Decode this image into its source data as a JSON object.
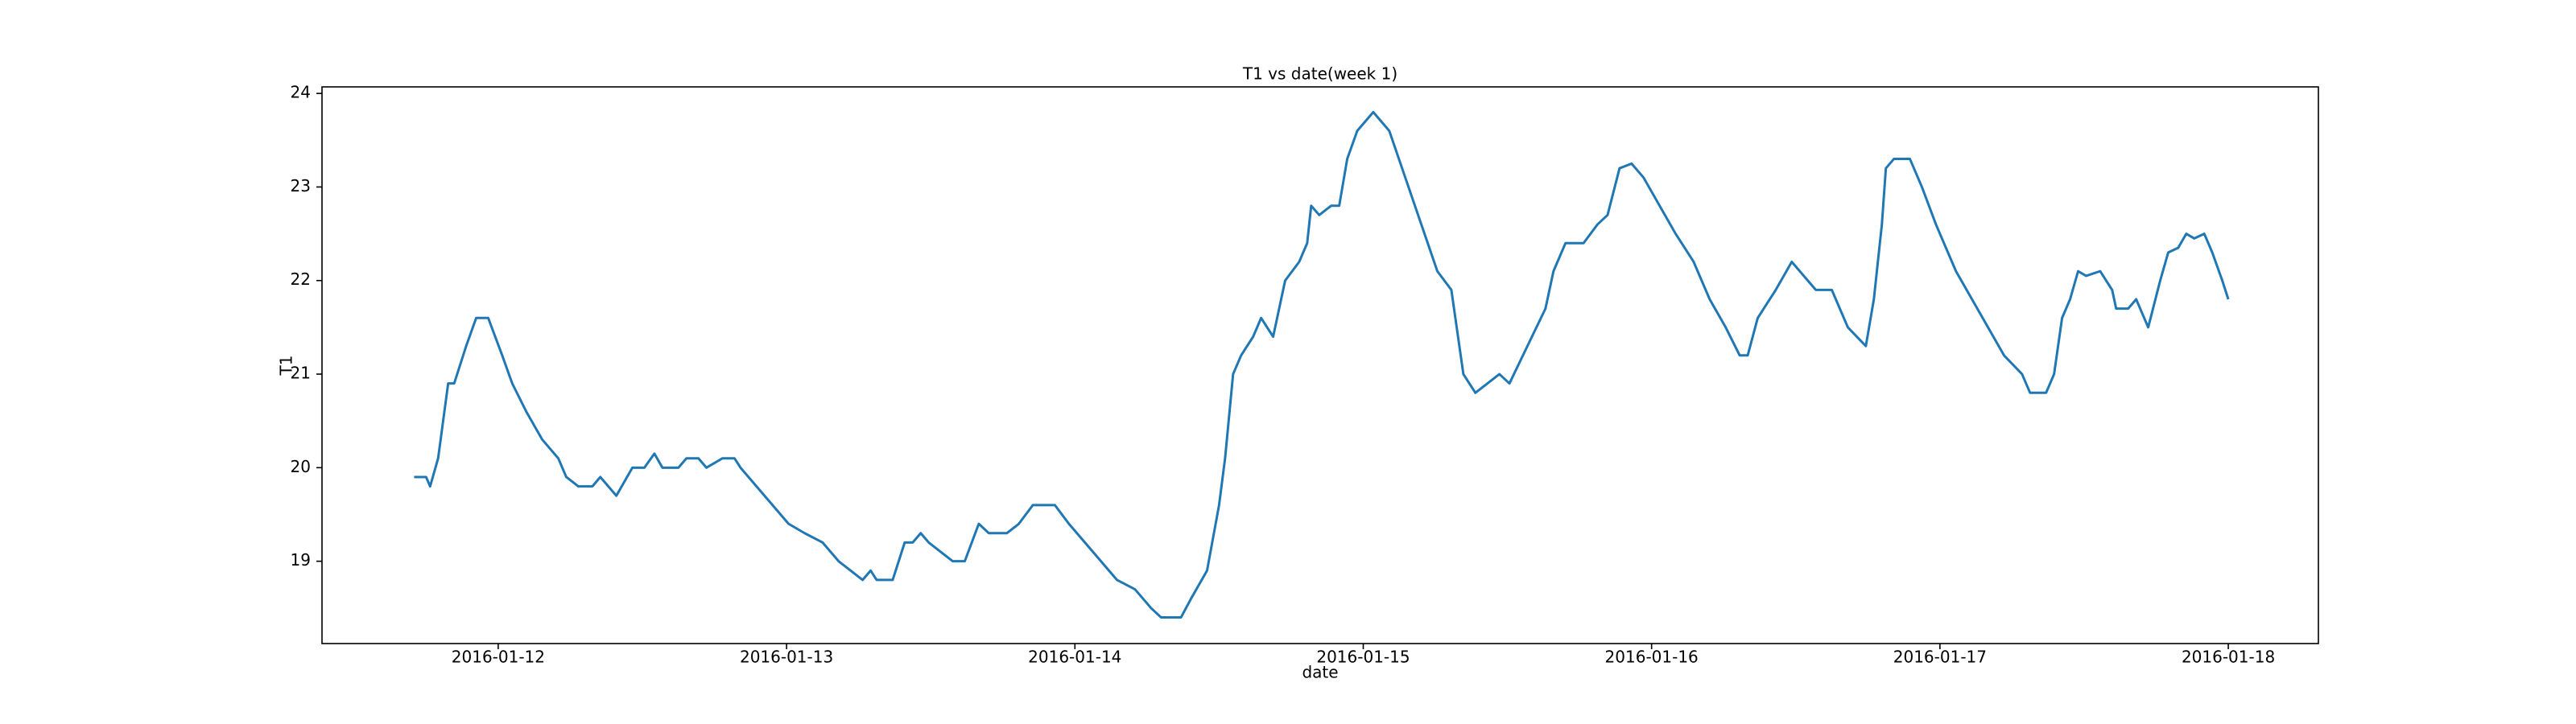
{
  "chart_data": {
    "type": "line",
    "title": "T1 vs date(week 1)",
    "x_label": "date",
    "y_label": "T1",
    "color": "#1f77b4",
    "x": [
      "2016-01-11 17:00",
      "2016-01-11 18:00",
      "2016-01-11 18:20",
      "2016-01-11 19:00",
      "2016-01-11 19:50",
      "2016-01-11 20:20",
      "2016-01-11 21:20",
      "2016-01-11 22:10",
      "2016-01-11 23:10",
      "2016-01-12 00:20",
      "2016-01-12 01:10",
      "2016-01-12 02:20",
      "2016-01-12 03:40",
      "2016-01-12 05:00",
      "2016-01-12 05:40",
      "2016-01-12 06:40",
      "2016-01-12 07:50",
      "2016-01-12 08:30",
      "2016-01-12 09:10",
      "2016-01-12 09:50",
      "2016-01-12 11:10",
      "2016-01-12 12:10",
      "2016-01-12 13:00",
      "2016-01-12 13:40",
      "2016-01-12 15:00",
      "2016-01-12 15:40",
      "2016-01-12 16:40",
      "2016-01-12 17:20",
      "2016-01-12 18:40",
      "2016-01-12 19:40",
      "2016-01-12 20:10",
      "2016-01-12 21:30",
      "2016-01-12 22:50",
      "2016-01-13 00:10",
      "2016-01-13 01:30",
      "2016-01-13 03:00",
      "2016-01-13 04:20",
      "2016-01-13 05:20",
      "2016-01-13 06:20",
      "2016-01-13 07:00",
      "2016-01-13 07:30",
      "2016-01-13 08:50",
      "2016-01-13 09:50",
      "2016-01-13 10:30",
      "2016-01-13 11:10",
      "2016-01-13 11:50",
      "2016-01-13 12:50",
      "2016-01-13 13:50",
      "2016-01-13 14:50",
      "2016-01-13 16:00",
      "2016-01-13 16:50",
      "2016-01-13 18:20",
      "2016-01-13 19:20",
      "2016-01-13 20:30",
      "2016-01-13 22:20",
      "2016-01-13 23:30",
      "2016-01-14 00:50",
      "2016-01-14 02:10",
      "2016-01-14 03:30",
      "2016-01-14 05:00",
      "2016-01-14 06:20",
      "2016-01-14 07:10",
      "2016-01-14 08:50",
      "2016-01-14 09:40",
      "2016-01-14 11:00",
      "2016-01-14 12:00",
      "2016-01-14 12:30",
      "2016-01-14 13:10",
      "2016-01-14 13:50",
      "2016-01-14 14:50",
      "2016-01-14 15:30",
      "2016-01-14 16:30",
      "2016-01-14 17:30",
      "2016-01-14 18:40",
      "2016-01-14 19:20",
      "2016-01-14 19:40",
      "2016-01-14 20:20",
      "2016-01-14 21:20",
      "2016-01-14 22:00",
      "2016-01-14 22:40",
      "2016-01-14 23:30",
      "2016-01-15 00:50",
      "2016-01-15 02:10",
      "2016-01-15 03:30",
      "2016-01-15 04:50",
      "2016-01-15 06:10",
      "2016-01-15 07:20",
      "2016-01-15 07:40",
      "2016-01-15 08:20",
      "2016-01-15 09:20",
      "2016-01-15 10:20",
      "2016-01-15 11:20",
      "2016-01-15 12:10",
      "2016-01-15 13:40",
      "2016-01-15 15:10",
      "2016-01-15 15:50",
      "2016-01-15 16:50",
      "2016-01-15 18:20",
      "2016-01-15 19:30",
      "2016-01-15 20:20",
      "2016-01-15 21:20",
      "2016-01-15 22:20",
      "2016-01-15 23:20",
      "2016-01-16 00:40",
      "2016-01-16 02:00",
      "2016-01-16 03:30",
      "2016-01-16 04:50",
      "2016-01-16 06:10",
      "2016-01-16 07:20",
      "2016-01-16 08:00",
      "2016-01-16 08:50",
      "2016-01-16 10:20",
      "2016-01-16 11:40",
      "2016-01-16 13:00",
      "2016-01-16 13:40",
      "2016-01-16 15:00",
      "2016-01-16 16:20",
      "2016-01-16 17:50",
      "2016-01-16 18:30",
      "2016-01-16 19:10",
      "2016-01-16 19:30",
      "2016-01-16 20:10",
      "2016-01-16 21:30",
      "2016-01-16 22:30",
      "2016-01-16 23:40",
      "2016-01-17 01:20",
      "2016-01-17 02:40",
      "2016-01-17 04:00",
      "2016-01-17 05:20",
      "2016-01-17 06:50",
      "2016-01-17 07:30",
      "2016-01-17 08:50",
      "2016-01-17 09:30",
      "2016-01-17 10:10",
      "2016-01-17 10:50",
      "2016-01-17 11:30",
      "2016-01-17 12:10",
      "2016-01-17 13:20",
      "2016-01-17 14:20",
      "2016-01-17 14:40",
      "2016-01-17 15:40",
      "2016-01-17 16:20",
      "2016-01-17 17:20",
      "2016-01-17 18:20",
      "2016-01-17 19:00",
      "2016-01-17 19:50",
      "2016-01-17 20:30",
      "2016-01-17 21:10",
      "2016-01-17 22:00",
      "2016-01-17 22:40",
      "2016-01-17 23:30",
      "2016-01-18 00:00"
    ],
    "values": [
      19.9,
      19.9,
      19.8,
      20.1,
      20.9,
      20.9,
      21.3,
      21.6,
      21.6,
      21.2,
      20.9,
      20.6,
      20.3,
      20.1,
      19.9,
      19.8,
      19.8,
      19.9,
      19.8,
      19.7,
      20.0,
      20.0,
      20.15,
      20.0,
      20.0,
      20.1,
      20.1,
      20.0,
      20.1,
      20.1,
      20.0,
      19.8,
      19.6,
      19.4,
      19.3,
      19.2,
      19.0,
      18.9,
      18.8,
      18.9,
      18.8,
      18.8,
      19.2,
      19.2,
      19.3,
      19.2,
      19.1,
      19.0,
      19.0,
      19.4,
      19.3,
      19.3,
      19.4,
      19.6,
      19.6,
      19.4,
      19.2,
      19.0,
      18.8,
      18.7,
      18.5,
      18.4,
      18.4,
      18.6,
      18.9,
      19.6,
      20.1,
      21.0,
      21.2,
      21.4,
      21.6,
      21.4,
      22.0,
      22.2,
      22.4,
      22.8,
      22.7,
      22.8,
      22.8,
      23.3,
      23.6,
      23.8,
      23.6,
      23.1,
      22.6,
      22.1,
      21.9,
      21.6,
      21.0,
      20.8,
      20.9,
      21.0,
      20.9,
      21.3,
      21.7,
      22.1,
      22.4,
      22.4,
      22.6,
      22.7,
      23.2,
      23.25,
      23.1,
      22.8,
      22.5,
      22.2,
      21.8,
      21.5,
      21.2,
      21.2,
      21.6,
      21.9,
      22.2,
      22.0,
      21.9,
      21.9,
      21.5,
      21.3,
      21.8,
      22.6,
      23.2,
      23.3,
      23.3,
      23.0,
      22.6,
      22.1,
      21.8,
      21.5,
      21.2,
      21.0,
      20.8,
      20.8,
      21.0,
      21.6,
      21.8,
      22.1,
      22.05,
      22.1,
      21.9,
      21.7,
      21.7,
      21.8,
      21.5,
      22.0,
      22.3,
      22.35,
      22.5,
      22.45,
      22.5,
      22.3,
      22.0,
      21.8
    ],
    "xlim": [
      "2016-01-11 09:20",
      "2016-01-18 07:30"
    ],
    "xticks": [
      "2016-01-12",
      "2016-01-13",
      "2016-01-14",
      "2016-01-15",
      "2016-01-16",
      "2016-01-17",
      "2016-01-18"
    ],
    "ylim": [
      18.12,
      24.07
    ],
    "yticks": [
      19,
      20,
      21,
      22,
      23,
      24
    ]
  }
}
